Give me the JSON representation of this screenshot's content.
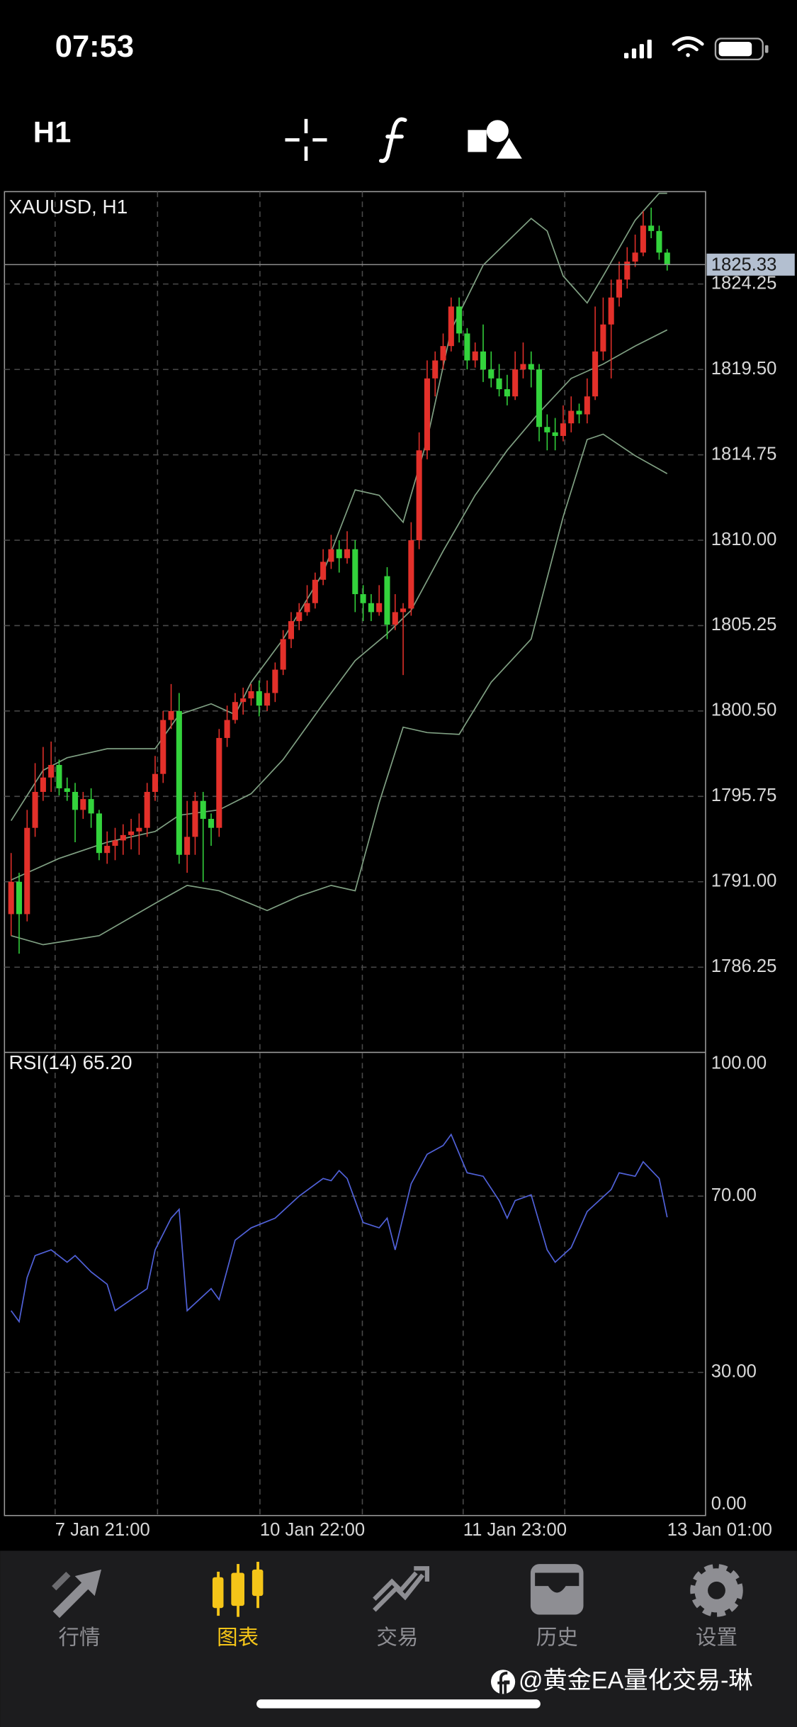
{
  "status_bar": {
    "time": "07:53"
  },
  "toolbar": {
    "timeframe": "H1"
  },
  "chart_data": [
    {
      "type": "candlestick",
      "title": "XAUUSD, H1",
      "open": [
        1789.2,
        1791.0,
        1789.2,
        1794.0,
        1796.0,
        1796.8,
        1797.5,
        1796.2,
        1796.0,
        1795.0,
        1795.6,
        1794.8,
        1792.6,
        1793.0,
        1793.3,
        1793.6,
        1793.8,
        1794.0,
        1796.0,
        1797.0,
        1800.0,
        1800.5,
        1792.5,
        1793.5,
        1795.5,
        1794.5,
        1794.0,
        1799.0,
        1800.0,
        1801.0,
        1801.2,
        1801.6,
        1800.8,
        1801.5,
        1802.8,
        1804.5,
        1805.5,
        1806.0,
        1806.5,
        1807.8,
        1808.8,
        1809.5,
        1809.0,
        1809.5,
        1807.0,
        1806.5,
        1806.0,
        1808.0,
        1805.3,
        1806.0,
        1806.2,
        1810.0,
        1815.0,
        1819.0,
        1820.0,
        1820.8,
        1823.0,
        1821.5,
        1820.0,
        1820.5,
        1819.5,
        1819.0,
        1818.4,
        1818.0,
        1819.5,
        1819.8,
        1819.5,
        1816.3,
        1816.0,
        1815.8,
        1816.5,
        1817.2,
        1817.0,
        1818.0,
        1820.5,
        1822.0,
        1823.5,
        1824.5,
        1825.5,
        1826.0,
        1827.5,
        1827.2,
        1826.0
      ],
      "high": [
        1792.6,
        1791.5,
        1795.0,
        1797.6,
        1798.5,
        1798.8,
        1797.8,
        1796.8,
        1796.5,
        1796.0,
        1796.2,
        1795.0,
        1793.8,
        1794.0,
        1794.2,
        1794.5,
        1794.8,
        1796.5,
        1798.0,
        1800.5,
        1802.0,
        1801.5,
        1795.5,
        1796.0,
        1796.0,
        1794.8,
        1799.5,
        1800.8,
        1801.5,
        1801.8,
        1802.0,
        1802.2,
        1802.2,
        1803.2,
        1805.0,
        1806.0,
        1806.5,
        1807.5,
        1808.2,
        1809.5,
        1810.3,
        1810.0,
        1810.5,
        1810.0,
        1807.5,
        1807.0,
        1807.5,
        1808.5,
        1807.0,
        1806.5,
        1811.0,
        1816.0,
        1820.0,
        1820.5,
        1821.5,
        1823.5,
        1823.5,
        1821.8,
        1821.0,
        1822.0,
        1820.5,
        1819.8,
        1819.2,
        1820.5,
        1821.0,
        1820.5,
        1819.8,
        1817.0,
        1816.8,
        1817.5,
        1818.0,
        1817.6,
        1819.0,
        1823.0,
        1823.5,
        1824.5,
        1825.5,
        1826.3,
        1827.0,
        1828.3,
        1828.5,
        1827.5,
        1826.2
      ],
      "low": [
        1788.0,
        1787.0,
        1788.8,
        1793.5,
        1795.5,
        1796.0,
        1795.8,
        1795.5,
        1793.2,
        1794.5,
        1794.0,
        1792.2,
        1792.0,
        1792.2,
        1792.5,
        1792.8,
        1792.5,
        1793.5,
        1795.5,
        1796.5,
        1799.5,
        1792.0,
        1791.5,
        1792.5,
        1791.0,
        1793.0,
        1793.5,
        1798.5,
        1799.8,
        1800.3,
        1800.8,
        1800.2,
        1800.5,
        1801.0,
        1802.5,
        1804.0,
        1805.0,
        1805.8,
        1806.2,
        1807.5,
        1808.4,
        1808.2,
        1808.7,
        1806.0,
        1805.5,
        1805.5,
        1805.8,
        1804.5,
        1805.0,
        1802.5,
        1805.8,
        1809.5,
        1814.5,
        1818.0,
        1819.5,
        1820.5,
        1821.0,
        1819.5,
        1819.6,
        1818.8,
        1818.5,
        1818.0,
        1817.5,
        1817.8,
        1819.0,
        1818.5,
        1815.5,
        1815.0,
        1815.0,
        1815.5,
        1816.0,
        1816.5,
        1816.5,
        1817.8,
        1820.0,
        1819.0,
        1823.0,
        1824.0,
        1825.2,
        1825.8,
        1826.8,
        1825.6,
        1825.0
      ],
      "close": [
        1791.0,
        1789.2,
        1794.0,
        1796.0,
        1796.8,
        1797.5,
        1796.2,
        1796.0,
        1795.0,
        1795.6,
        1794.8,
        1792.6,
        1793.0,
        1793.3,
        1793.6,
        1793.8,
        1794.0,
        1796.0,
        1797.0,
        1800.0,
        1800.5,
        1792.5,
        1793.5,
        1795.5,
        1794.5,
        1794.0,
        1799.0,
        1800.0,
        1801.0,
        1801.2,
        1801.6,
        1800.8,
        1801.5,
        1802.8,
        1804.5,
        1805.5,
        1806.0,
        1806.5,
        1807.8,
        1808.8,
        1809.5,
        1809.0,
        1809.5,
        1807.0,
        1806.5,
        1806.0,
        1806.5,
        1805.3,
        1806.0,
        1806.2,
        1810.0,
        1815.0,
        1819.0,
        1820.0,
        1820.8,
        1823.0,
        1821.5,
        1820.0,
        1820.5,
        1819.5,
        1819.0,
        1818.4,
        1818.0,
        1819.5,
        1819.8,
        1819.5,
        1816.3,
        1816.0,
        1815.8,
        1816.5,
        1817.2,
        1817.0,
        1818.0,
        1820.5,
        1822.0,
        1823.5,
        1824.5,
        1825.5,
        1826.0,
        1827.5,
        1827.2,
        1826.0,
        1825.33
      ],
      "up_color": "#e3302a",
      "down_color": "#33d33c",
      "bands": [
        {
          "color": "#7f9f82",
          "x": [
            0,
            4,
            7,
            12,
            18,
            21,
            25,
            28,
            30,
            34,
            39,
            43,
            46,
            49,
            52,
            55,
            59,
            65,
            67,
            69,
            72,
            74,
            78,
            81,
            82
          ],
          "values": [
            1794.4,
            1797.2,
            1797.9,
            1798.4,
            1798.4,
            1800.3,
            1800.9,
            1800.3,
            1802.1,
            1804.5,
            1808.2,
            1812.8,
            1812.5,
            1811.0,
            1815.6,
            1821.7,
            1825.3,
            1827.9,
            1827.2,
            1824.7,
            1823.2,
            1824.7,
            1827.8,
            1829.3,
            1829.3
          ]
        },
        {
          "color": "#7f9f82",
          "x": [
            0,
            6,
            12,
            18,
            21,
            26,
            30,
            34,
            39,
            43,
            47,
            50,
            54,
            58,
            62,
            66,
            70,
            74,
            78,
            82
          ],
          "values": [
            1791.1,
            1792.3,
            1793.2,
            1793.8,
            1794.7,
            1795.0,
            1795.9,
            1797.8,
            1800.9,
            1803.3,
            1804.8,
            1806.1,
            1809.4,
            1812.5,
            1815.0,
            1817.1,
            1819.0,
            1819.8,
            1820.8,
            1821.7
          ]
        },
        {
          "color": "#7f9f82",
          "x": [
            0,
            4,
            11,
            18,
            22,
            26,
            32,
            36,
            40,
            43,
            46,
            49,
            52,
            56,
            60,
            65,
            69,
            72,
            74,
            78,
            82
          ],
          "values": [
            1788.0,
            1787.5,
            1788.0,
            1789.8,
            1790.8,
            1790.5,
            1789.4,
            1790.2,
            1790.8,
            1790.5,
            1795.4,
            1799.6,
            1799.3,
            1799.2,
            1802.1,
            1804.5,
            1811.3,
            1815.6,
            1815.9,
            1814.7,
            1813.7
          ]
        }
      ],
      "current_price": 1825.33,
      "xlim": [
        -0.83,
        86.8
      ],
      "ylim": [
        1781.54,
        1829.39
      ],
      "yticks": [
        1824.25,
        {
          "value": 1819.5,
          "label": "1819.50"
        },
        1814.75,
        {
          "value": 1810,
          "label": "1810.00"
        },
        1805.25,
        {
          "value": 1800.5,
          "label": "1800.50"
        },
        1795.75,
        {
          "value": 1791,
          "label": "1791.00"
        },
        1786.25
      ],
      "xgrid": [
        5.5,
        18.3,
        31.1,
        43.9,
        56.5,
        69.2
      ],
      "grid": true
    },
    {
      "type": "line",
      "title": "RSI(14) 65.20",
      "series": [
        {
          "color": "#5061d8",
          "x": [
            0,
            1,
            2,
            3,
            5,
            7,
            8,
            10,
            12,
            13,
            15,
            17,
            18,
            20,
            21,
            22,
            25,
            26,
            28,
            30,
            33,
            36,
            39,
            40,
            41,
            42,
            44,
            46,
            47,
            48,
            50,
            52,
            54,
            55,
            57,
            59,
            61,
            62,
            63,
            65,
            67,
            68,
            70,
            72,
            75,
            76,
            78,
            79,
            81,
            82
          ],
          "values": [
            44,
            41.5,
            51.5,
            56.5,
            57.8,
            55,
            56.5,
            52.8,
            50,
            44,
            46.5,
            49,
            57.8,
            65,
            67,
            44,
            49,
            46.5,
            60,
            62.8,
            65,
            70,
            74,
            73.5,
            75.8,
            74,
            64,
            62.8,
            65,
            57.8,
            72.8,
            79.5,
            81.5,
            84,
            75.3,
            74.5,
            69,
            65,
            69,
            70.3,
            57.8,
            55,
            58.3,
            66.5,
            71.5,
            75.3,
            74.5,
            77.8,
            74,
            65.2
          ]
        }
      ],
      "xlim": [
        -0.83,
        86.8
      ],
      "ylim": [
        -2.5,
        102.5
      ],
      "yticks": [
        {
          "value": 100,
          "label": "100.00"
        },
        {
          "value": 70,
          "label": "70.00"
        },
        {
          "value": 30,
          "label": "30.00"
        },
        {
          "value": 0,
          "label": "0.00"
        }
      ],
      "levels": [
        70,
        30
      ],
      "xticks": [
        {
          "value": 5.5,
          "label": "7 Jan 21:00"
        },
        {
          "value": 31.1,
          "label": "10 Jan 22:00"
        },
        {
          "value": 56.5,
          "label": "11 Jan 23:00"
        },
        {
          "value": 82,
          "label": "13 Jan 01:00"
        }
      ],
      "xgrid": [
        5.5,
        18.3,
        31.1,
        43.9,
        56.5,
        69.2
      ],
      "grid": true
    }
  ],
  "tabs": [
    {
      "label": "行情"
    },
    {
      "label": "图表",
      "active": true
    },
    {
      "label": "交易"
    },
    {
      "label": "历史"
    },
    {
      "label": "设置"
    }
  ],
  "watermark": "@黄金EA量化交易-琳"
}
